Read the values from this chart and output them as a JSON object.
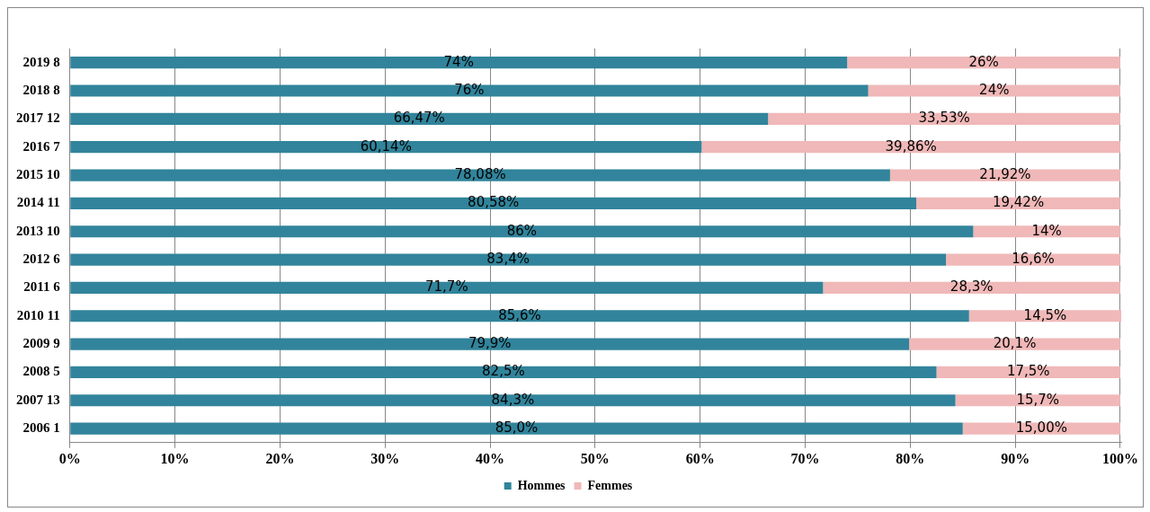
{
  "chart_data": {
    "type": "bar",
    "orientation": "horizontal",
    "stacked": true,
    "categories": [
      "2019 8",
      "2018 8",
      "2017 12",
      "2016 7",
      "2015 10",
      "2014 11",
      "2013 10",
      "2012 6",
      "2011 6",
      "2010 11",
      "2009 9",
      "2008 5",
      "2007 13",
      "2006 1"
    ],
    "series": [
      {
        "name": "Hommes",
        "color": "#31849b",
        "values": [
          74,
          76,
          66.47,
          60.14,
          78.08,
          80.58,
          86,
          83.4,
          71.7,
          85.6,
          79.9,
          82.5,
          84.3,
          85.0
        ],
        "value_labels": [
          "74%",
          "76%",
          "66,47%",
          "60,14%",
          "78,08%",
          "80,58%",
          "86%",
          "83,4%",
          "71,7%",
          "85,6%",
          "79,9%",
          "82,5%",
          "84,3%",
          "85,0%"
        ]
      },
      {
        "name": "Femmes",
        "color": "#f0b8b8",
        "values": [
          26,
          24,
          33.53,
          39.86,
          21.92,
          19.42,
          14,
          16.6,
          28.3,
          14.5,
          20.1,
          17.5,
          15.7,
          15.0
        ],
        "value_labels": [
          "26%",
          "24%",
          "33,53%",
          "39,86%",
          "21,92%",
          "19,42%",
          "14%",
          "16,6%",
          "28,3%",
          "14,5%",
          "20,1%",
          "17,5%",
          "15,7%",
          "15,00%"
        ]
      }
    ],
    "xlim": [
      0,
      100.1
    ],
    "xticks": [
      {
        "value": 0,
        "label": "0%"
      },
      {
        "value": 10,
        "label": "10%"
      },
      {
        "value": 20,
        "label": "20%"
      },
      {
        "value": 30,
        "label": "30%"
      },
      {
        "value": 40,
        "label": "40%"
      },
      {
        "value": 50,
        "label": "50%"
      },
      {
        "value": 60,
        "label": "60%"
      },
      {
        "value": 70,
        "label": "70%"
      },
      {
        "value": 80,
        "label": "80%"
      },
      {
        "value": 90,
        "label": "90%"
      },
      {
        "value": 100,
        "label": "100%"
      }
    ],
    "grid": "x",
    "legend": "bottom"
  }
}
